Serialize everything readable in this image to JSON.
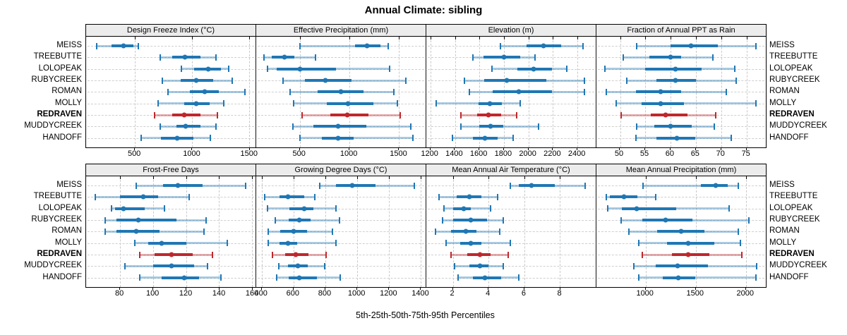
{
  "title": "Annual Climate: sibling",
  "caption": "5th-25th-50th-75th-95th Percentiles",
  "sites": [
    "MEISS",
    "TREEBUTTE",
    "LOLOPEAK",
    "RUBYCREEK",
    "ROMAN",
    "MOLLY",
    "REDRAVEN",
    "MUDDYCREEK",
    "HANDOFF"
  ],
  "highlight_site": "REDRAVEN",
  "colors": {
    "series": "#1f77b4",
    "highlight": "#be282c",
    "strip_bg": "#ececec",
    "grid": "#c9c9c9",
    "border": "#000000"
  },
  "chart_data": [
    {
      "type": "percentile-dotplot",
      "title": "Design Freeze Index (°C)",
      "row": 0,
      "percentiles": [
        5,
        25,
        50,
        75,
        95
      ],
      "xlim": [
        75,
        1555
      ],
      "ticks": [
        500,
        1000,
        1500
      ],
      "series": [
        {
          "site": "MEISS",
          "values": [
            165,
            295,
            400,
            490,
            530
          ]
        },
        {
          "site": "TREEBUTTE",
          "values": [
            725,
            830,
            940,
            1075,
            1210
          ]
        },
        {
          "site": "LOLOPEAK",
          "values": [
            910,
            1020,
            1140,
            1255,
            1320
          ]
        },
        {
          "site": "RUBYCREEK",
          "values": [
            740,
            900,
            1035,
            1185,
            1350
          ]
        },
        {
          "site": "ROMAN",
          "values": [
            790,
            980,
            1110,
            1235,
            1465
          ]
        },
        {
          "site": "MOLLY",
          "values": [
            705,
            930,
            1035,
            1155,
            1280
          ]
        },
        {
          "site": "REDRAVEN",
          "values": [
            675,
            825,
            935,
            1075,
            1225
          ]
        },
        {
          "site": "MUDDYCREEK",
          "values": [
            720,
            865,
            945,
            1075,
            1210
          ]
        },
        {
          "site": "HANDOFF",
          "values": [
            555,
            730,
            870,
            1015,
            1160
          ]
        }
      ]
    },
    {
      "type": "percentile-dotplot",
      "title": "Effective Precipitation (mm)",
      "row": 0,
      "percentiles": [
        5,
        25,
        50,
        75,
        95
      ],
      "xlim": [
        60,
        1770
      ],
      "ticks": [
        500,
        1000,
        1500
      ],
      "series": [
        {
          "site": "MEISS",
          "values": [
            500,
            1055,
            1180,
            1315,
            1390
          ]
        },
        {
          "site": "TREEBUTTE",
          "values": [
            140,
            215,
            345,
            445,
            660
          ]
        },
        {
          "site": "LOLOPEAK",
          "values": [
            175,
            265,
            505,
            865,
            1405
          ]
        },
        {
          "site": "RUBYCREEK",
          "values": [
            330,
            555,
            755,
            1020,
            1570
          ]
        },
        {
          "site": "ROMAN",
          "values": [
            405,
            680,
            915,
            1140,
            1450
          ]
        },
        {
          "site": "MOLLY",
          "values": [
            435,
            770,
            985,
            1245,
            1485
          ]
        },
        {
          "site": "REDRAVEN",
          "values": [
            520,
            805,
            980,
            1195,
            1515
          ]
        },
        {
          "site": "MUDDYCREEK",
          "values": [
            430,
            640,
            885,
            1175,
            1620
          ]
        },
        {
          "site": "HANDOFF",
          "values": [
            500,
            725,
            885,
            1045,
            1645
          ]
        }
      ]
    },
    {
      "type": "percentile-dotplot",
      "title": "Elevation (m)",
      "row": 0,
      "percentiles": [
        5,
        25,
        50,
        75,
        95
      ],
      "xlim": [
        1165,
        2550
      ],
      "ticks": [
        1200,
        1400,
        1600,
        1800,
        2000,
        2200,
        2400
      ],
      "series": [
        {
          "site": "MEISS",
          "values": [
            1770,
            1985,
            2125,
            2270,
            2445
          ]
        },
        {
          "site": "TREEBUTTE",
          "values": [
            1545,
            1635,
            1800,
            1930,
            2055
          ]
        },
        {
          "site": "LOLOPEAK",
          "values": [
            1700,
            1910,
            2040,
            2195,
            2315
          ]
        },
        {
          "site": "RUBYCREEK",
          "values": [
            1475,
            1640,
            1820,
            2145,
            2460
          ]
        },
        {
          "site": "ROMAN",
          "values": [
            1515,
            1710,
            1920,
            2195,
            2455
          ]
        },
        {
          "site": "MOLLY",
          "values": [
            1245,
            1590,
            1685,
            1780,
            1930
          ]
        },
        {
          "site": "REDRAVEN",
          "values": [
            1450,
            1580,
            1670,
            1775,
            1905
          ]
        },
        {
          "site": "MUDDYCREEK",
          "values": [
            1450,
            1600,
            1690,
            1795,
            2080
          ]
        },
        {
          "site": "HANDOFF",
          "values": [
            1380,
            1545,
            1645,
            1745,
            1875
          ]
        }
      ]
    },
    {
      "type": "percentile-dotplot",
      "title": "Fraction of Annual PPT as Rain",
      "row": 0,
      "percentiles": [
        5,
        25,
        50,
        75,
        95
      ],
      "xlim": [
        45.3,
        78.8
      ],
      "ticks": [
        50,
        55,
        60,
        65,
        70,
        75
      ],
      "series": [
        {
          "site": "MEISS",
          "values": [
            53.3,
            60,
            64,
            69.3,
            76.8
          ]
        },
        {
          "site": "TREEBUTTE",
          "values": [
            50.6,
            55.8,
            60,
            62.1,
            68.4
          ]
        },
        {
          "site": "LOLOPEAK",
          "values": [
            47,
            54.9,
            61,
            66.1,
            72.7
          ]
        },
        {
          "site": "RUBYCREEK",
          "values": [
            51.3,
            57.1,
            61,
            65,
            73
          ]
        },
        {
          "site": "ROMAN",
          "values": [
            47.2,
            53.1,
            58,
            62,
            71
          ]
        },
        {
          "site": "MOLLY",
          "values": [
            49.2,
            54.2,
            58,
            62.6,
            76.9
          ]
        },
        {
          "site": "REDRAVEN",
          "values": [
            50.2,
            56.1,
            59,
            63.3,
            68.9
          ]
        },
        {
          "site": "MUDDYCREEK",
          "values": [
            53.3,
            56.7,
            60,
            64.2,
            68.6
          ]
        },
        {
          "site": "HANDOFF",
          "values": [
            53.1,
            57.1,
            61.2,
            64.9,
            72
          ]
        }
      ]
    },
    {
      "type": "percentile-dotplot",
      "title": "Frost-Free Days",
      "row": 1,
      "percentiles": [
        5,
        25,
        50,
        75,
        95
      ],
      "xlim": [
        59.5,
        162
      ],
      "ticks": [
        80,
        100,
        120,
        140,
        160
      ],
      "series": [
        {
          "site": "MEISS",
          "values": [
            90,
            106,
            115,
            130,
            156
          ]
        },
        {
          "site": "TREEBUTTE",
          "values": [
            65,
            80,
            94,
            103,
            122
          ]
        },
        {
          "site": "LOLOPEAK",
          "values": [
            75,
            77,
            82,
            95,
            107
          ]
        },
        {
          "site": "RUBYCREEK",
          "values": [
            71,
            78,
            91,
            114,
            132
          ]
        },
        {
          "site": "ROMAN",
          "values": [
            71,
            78,
            90,
            104,
            131
          ]
        },
        {
          "site": "MOLLY",
          "values": [
            89,
            97,
            105,
            120,
            145
          ]
        },
        {
          "site": "REDRAVEN",
          "values": [
            92,
            101,
            111,
            124,
            136
          ]
        },
        {
          "site": "MUDDYCREEK",
          "values": [
            83,
            100,
            111,
            125,
            133
          ]
        },
        {
          "site": "HANDOFF",
          "values": [
            92,
            105,
            119,
            128,
            141
          ]
        }
      ]
    },
    {
      "type": "percentile-dotplot",
      "title": "Growing Degree Days (°C)",
      "row": 1,
      "percentiles": [
        5,
        25,
        50,
        75,
        95
      ],
      "xlim": [
        365,
        1431
      ],
      "ticks": [
        400,
        600,
        800,
        1000,
        1200,
        1400
      ],
      "series": [
        {
          "site": "MEISS",
          "values": [
            765,
            865,
            970,
            1115,
            1360
          ]
        },
        {
          "site": "TREEBUTTE",
          "values": [
            420,
            510,
            565,
            665,
            735
          ]
        },
        {
          "site": "LOLOPEAK",
          "values": [
            437,
            574,
            666,
            725,
            865
          ]
        },
        {
          "site": "RUBYCREEK",
          "values": [
            485,
            570,
            635,
            707,
            887
          ]
        },
        {
          "site": "ROMAN",
          "values": [
            441,
            518,
            600,
            684,
            843
          ]
        },
        {
          "site": "MOLLY",
          "values": [
            441,
            511,
            563,
            622,
            865
          ]
        },
        {
          "site": "REDRAVEN",
          "values": [
            466,
            545,
            614,
            695,
            806
          ]
        },
        {
          "site": "MUDDYCREEK",
          "values": [
            508,
            567,
            625,
            688,
            796
          ]
        },
        {
          "site": "HANDOFF",
          "values": [
            493,
            570,
            636,
            747,
            892
          ]
        }
      ]
    },
    {
      "type": "percentile-dotplot",
      "title": "Mean Annual Air Temperature (°C)",
      "row": 1,
      "percentiles": [
        5,
        25,
        50,
        75,
        95
      ],
      "xlim": [
        0.5,
        10
      ],
      "ticks": [
        2,
        4,
        6,
        8
      ],
      "series": [
        {
          "site": "MEISS",
          "values": [
            5.2,
            5.7,
            6.4,
            7.7,
            9.4
          ]
        },
        {
          "site": "TREEBUTTE",
          "values": [
            1.2,
            2.2,
            2.9,
            3.6,
            4.5
          ]
        },
        {
          "site": "LOLOPEAK",
          "values": [
            1.5,
            2.0,
            2.6,
            3.0,
            4.1
          ]
        },
        {
          "site": "RUBYCREEK",
          "values": [
            1.4,
            2.0,
            3.0,
            3.9,
            4.8
          ]
        },
        {
          "site": "ROMAN",
          "values": [
            1.0,
            1.9,
            2.7,
            3.3,
            4.6
          ]
        },
        {
          "site": "MOLLY",
          "values": [
            1.6,
            2.4,
            3.0,
            3.6,
            5.2
          ]
        },
        {
          "site": "REDRAVEN",
          "values": [
            1.9,
            2.8,
            3.5,
            4.1,
            5.1
          ]
        },
        {
          "site": "MUDDYCREEK",
          "values": [
            2.1,
            2.9,
            3.5,
            4.0,
            4.8
          ]
        },
        {
          "site": "HANDOFF",
          "values": [
            2.3,
            3.1,
            3.8,
            4.7,
            5.7
          ]
        }
      ]
    },
    {
      "type": "percentile-dotplot",
      "title": "Mean Annual Precipitation (mm)",
      "row": 1,
      "percentiles": [
        5,
        25,
        50,
        75,
        95
      ],
      "xlim": [
        504,
        2199
      ],
      "ticks": [
        1000,
        1500,
        2000
      ],
      "series": [
        {
          "site": "MEISS",
          "values": [
            970,
            1550,
            1700,
            1820,
            1925
          ]
        },
        {
          "site": "TREEBUTTE",
          "values": [
            605,
            640,
            778,
            917,
            1094
          ]
        },
        {
          "site": "LOLOPEAK",
          "values": [
            619,
            760,
            910,
            1300,
            1830
          ]
        },
        {
          "site": "RUBYCREEK",
          "values": [
            753,
            960,
            1195,
            1466,
            2030
          ]
        },
        {
          "site": "ROMAN",
          "values": [
            830,
            1113,
            1348,
            1588,
            1925
          ]
        },
        {
          "site": "MOLLY",
          "values": [
            930,
            1212,
            1424,
            1682,
            1948
          ]
        },
        {
          "site": "REDRAVEN",
          "values": [
            960,
            1258,
            1420,
            1635,
            1960
          ]
        },
        {
          "site": "MUDDYCREEK",
          "values": [
            880,
            1094,
            1313,
            1623,
            2105
          ]
        },
        {
          "site": "HANDOFF",
          "values": [
            930,
            1170,
            1325,
            1494,
            2100
          ]
        }
      ]
    }
  ]
}
